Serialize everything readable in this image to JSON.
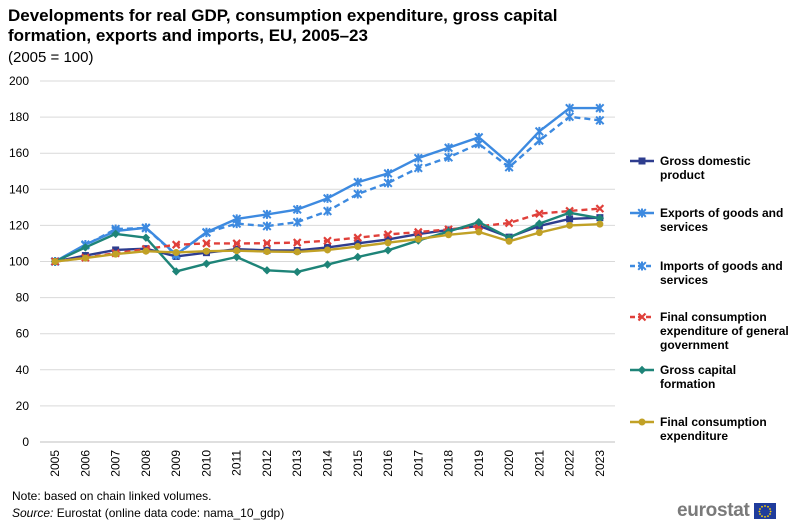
{
  "title": "Developments for real GDP, consumption expenditure, gross capital formation, exports and imports, EU, 2005–23",
  "subtitle": "(2005 = 100)",
  "note": "Note: based on chain linked volumes.",
  "source_label": "Source:",
  "source_text": "Eurostat (online data code: nama_10_gdp)",
  "logo_text": "eurostat",
  "chart_data": {
    "type": "line",
    "x": [
      "2005",
      "2006",
      "2007",
      "2008",
      "2009",
      "2010",
      "2011",
      "2012",
      "2013",
      "2014",
      "2015",
      "2016",
      "2017",
      "2018",
      "2019",
      "2020",
      "2021",
      "2022",
      "2023"
    ],
    "ylim": [
      0,
      200
    ],
    "yticks": [
      0,
      20,
      40,
      60,
      80,
      100,
      120,
      140,
      160,
      180,
      200
    ],
    "grid": true,
    "legend_position": "right",
    "series": [
      {
        "name": "Gross domestic product",
        "legend_lines": [
          "Gross domestic",
          "product"
        ],
        "color": "#2e3d8f",
        "dash": "",
        "marker": "square",
        "values": [
          100,
          103.3,
          106.4,
          107.1,
          102.8,
          104.9,
          106.8,
          106.2,
          106.1,
          107.8,
          110.1,
          112.2,
          115.2,
          117.5,
          119.8,
          113.5,
          119.7,
          123.6,
          124.3
        ]
      },
      {
        "name": "Exports of goods and services",
        "legend_lines": [
          "Exports of goods and",
          "services"
        ],
        "color": "#3d8ae0",
        "dash": "",
        "marker": "star",
        "values": [
          100,
          109.4,
          116.9,
          118.7,
          103.8,
          116.2,
          123.6,
          126.1,
          128.8,
          135.0,
          143.9,
          148.8,
          157.3,
          163.0,
          168.8,
          154.4,
          172.1,
          185.0,
          185.0
        ]
      },
      {
        "name": "Imports of goods and services",
        "legend_lines": [
          "Imports of goods and",
          "services"
        ],
        "color": "#3d8ae0",
        "dash": "6,4",
        "marker": "star",
        "values": [
          100,
          109.0,
          118.0,
          118.5,
          103.5,
          116.0,
          121.0,
          119.6,
          121.8,
          127.9,
          137.4,
          143.5,
          151.8,
          157.7,
          165.2,
          152.2,
          167.0,
          180.2,
          178.2
        ]
      },
      {
        "name": "Final consumption expenditure of general government",
        "legend_lines": [
          "Final consumption",
          "expenditure of general",
          "government"
        ],
        "color": "#e0403a",
        "dash": "6,4",
        "marker": "cross",
        "values": [
          100,
          102.1,
          104.6,
          106.9,
          109.3,
          110.0,
          110.0,
          110.1,
          110.5,
          111.5,
          113.2,
          115.0,
          116.3,
          117.8,
          119.5,
          121.3,
          126.5,
          128.0,
          129.3
        ]
      },
      {
        "name": "Gross capital formation",
        "legend_lines": [
          "Gross capital",
          "formation"
        ],
        "color": "#1e8478",
        "dash": "",
        "marker": "diamond",
        "values": [
          100,
          107.8,
          115.3,
          113.2,
          94.5,
          98.8,
          102.5,
          95.1,
          94.2,
          98.3,
          102.5,
          106.2,
          111.6,
          116.6,
          121.8,
          113.2,
          121.0,
          127.0,
          124.0
        ]
      },
      {
        "name": "Final consumption expenditure",
        "legend_lines": [
          "Final consumption",
          "expenditure"
        ],
        "color": "#c1a126",
        "dash": "",
        "marker": "circle",
        "values": [
          100,
          101.9,
          104.1,
          105.7,
          105.0,
          105.7,
          106.0,
          105.5,
          105.3,
          106.4,
          108.3,
          110.4,
          112.4,
          114.8,
          116.4,
          111.2,
          116.0,
          120.0,
          120.7
        ]
      }
    ]
  }
}
